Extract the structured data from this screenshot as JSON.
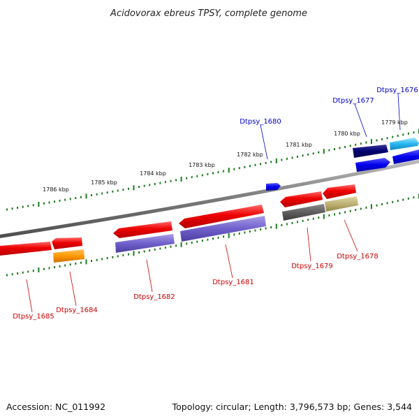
{
  "map": {
    "title": "Acidovorax ebreus TPSY, complete genome",
    "accession": "Accession: NC_011992",
    "topology": "Topology: circular; Length: 3,796,573 bp; Genes: 3,544",
    "colors": {
      "forward_label": "#0000cc",
      "reverse_label": "#cc0000",
      "backbone": "#8a8a8a",
      "tick": "#1a7a1a"
    },
    "scale_labels": [
      "1786 kbp",
      "1785 kbp",
      "1784 kbp",
      "1783 kbp",
      "1782 kbp",
      "1781 kbp",
      "1780 kbp",
      "1779 kbp"
    ],
    "genes": [
      {
        "name": "Dtpsy_1676",
        "strand": "forward"
      },
      {
        "name": "Dtpsy_1677",
        "strand": "forward"
      },
      {
        "name": "Dtpsy_1680",
        "strand": "forward"
      },
      {
        "name": "Dtpsy_1678",
        "strand": "reverse"
      },
      {
        "name": "Dtpsy_1679",
        "strand": "reverse"
      },
      {
        "name": "Dtpsy_1681",
        "strand": "reverse"
      },
      {
        "name": "Dtpsy_1682",
        "strand": "reverse"
      },
      {
        "name": "Dtpsy_1684",
        "strand": "reverse"
      },
      {
        "name": "Dtpsy_1685",
        "strand": "reverse"
      }
    ]
  }
}
